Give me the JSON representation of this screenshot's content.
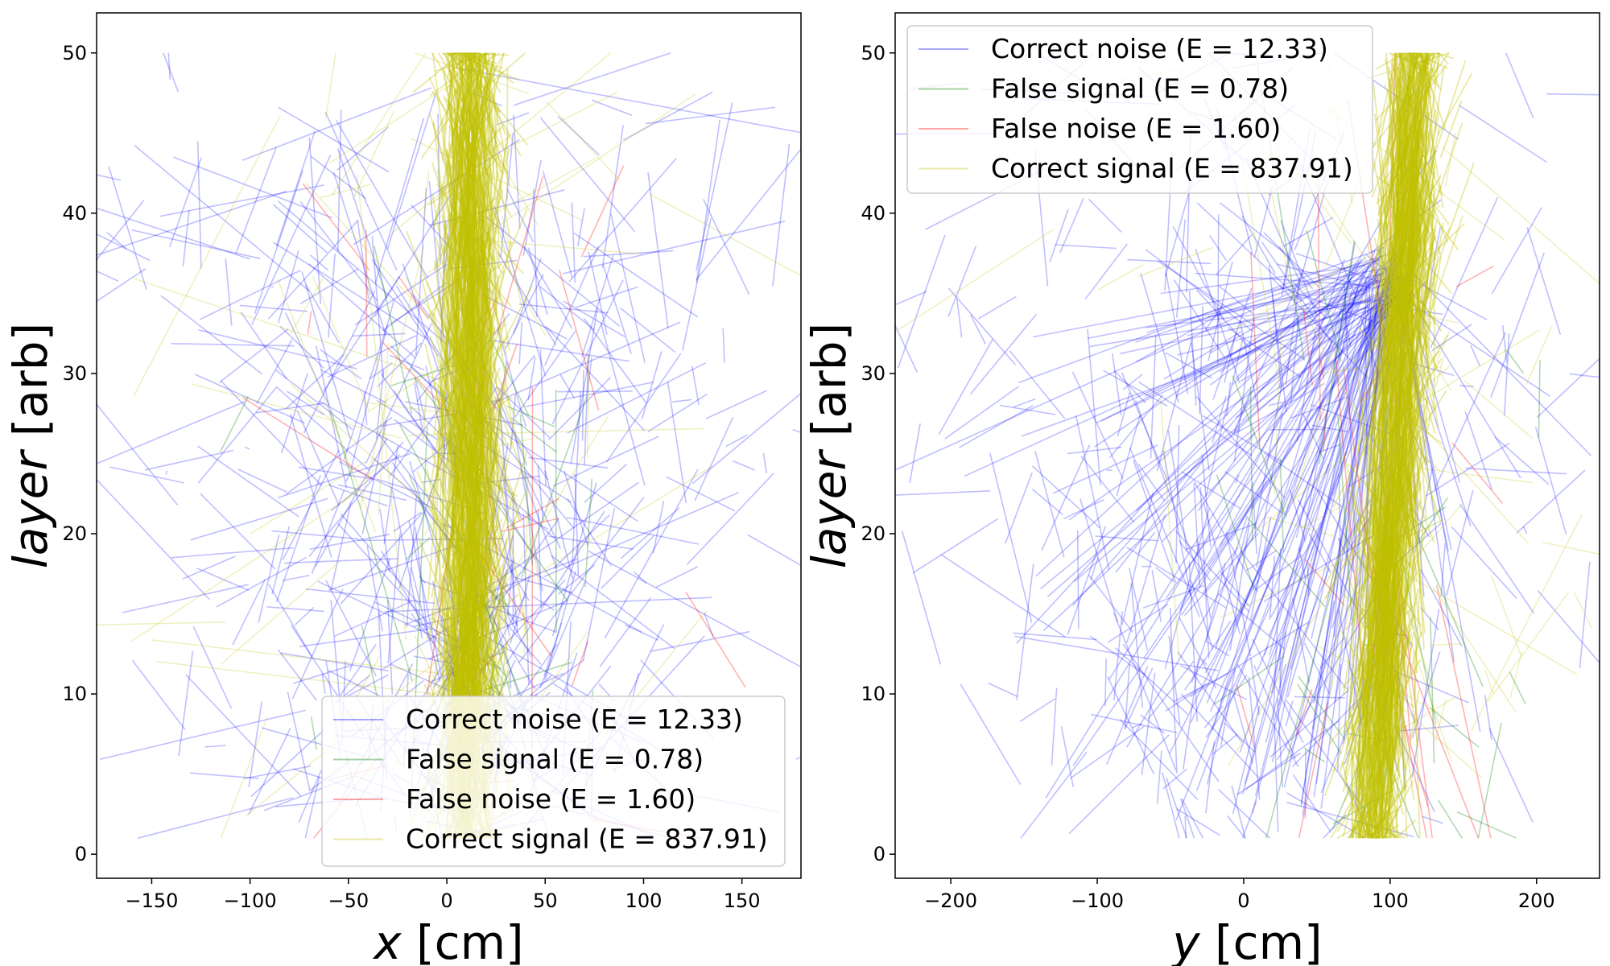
{
  "chart_data": [
    {
      "type": "line",
      "panel": "left",
      "xlabel_var": "x",
      "xlabel_unit": " [cm]",
      "ylabel_var": "layer",
      "ylabel_unit": " [arb]",
      "xlim": [
        -178,
        180
      ],
      "ylim": [
        -1.5,
        52.5
      ],
      "xticks": [
        -150,
        -100,
        -50,
        0,
        50,
        100,
        150
      ],
      "yticks": [
        0,
        10,
        20,
        30,
        40,
        50
      ],
      "legend_position": "lower-right",
      "signal_center": 10,
      "signal_center_top": 12,
      "signal_spread": 18,
      "noise_center": 5,
      "noise_spread": 75,
      "series": [
        {
          "name": "Correct noise (E = 12.33)",
          "color": "#0000ff"
        },
        {
          "name": "False signal (E = 0.78)",
          "color": "#008000"
        },
        {
          "name": "False noise (E = 1.60)",
          "color": "#ff0000"
        },
        {
          "name": "Correct signal (E = 837.91)",
          "color": "#bfbf00"
        }
      ]
    },
    {
      "type": "line",
      "panel": "right",
      "xlabel_var": "y",
      "xlabel_unit": " [cm]",
      "ylabel_var": "layer",
      "ylabel_unit": " [arb]",
      "xlim": [
        -238,
        243
      ],
      "ylim": [
        -1.5,
        52.5
      ],
      "xticks": [
        -200,
        -100,
        0,
        100,
        200
      ],
      "yticks": [
        0,
        10,
        20,
        30,
        40,
        50
      ],
      "legend_position": "upper-left",
      "signal_center": 88,
      "signal_center_top": 118,
      "signal_spread": 22,
      "noise_center": 0,
      "noise_spread": 95,
      "series": [
        {
          "name": "Correct noise (E = 12.33)",
          "color": "#0000ff"
        },
        {
          "name": "False signal (E = 0.78)",
          "color": "#008000"
        },
        {
          "name": "False noise (E = 1.60)",
          "color": "#ff0000"
        },
        {
          "name": "Correct signal (E = 837.91)",
          "color": "#bfbf00"
        }
      ]
    }
  ]
}
